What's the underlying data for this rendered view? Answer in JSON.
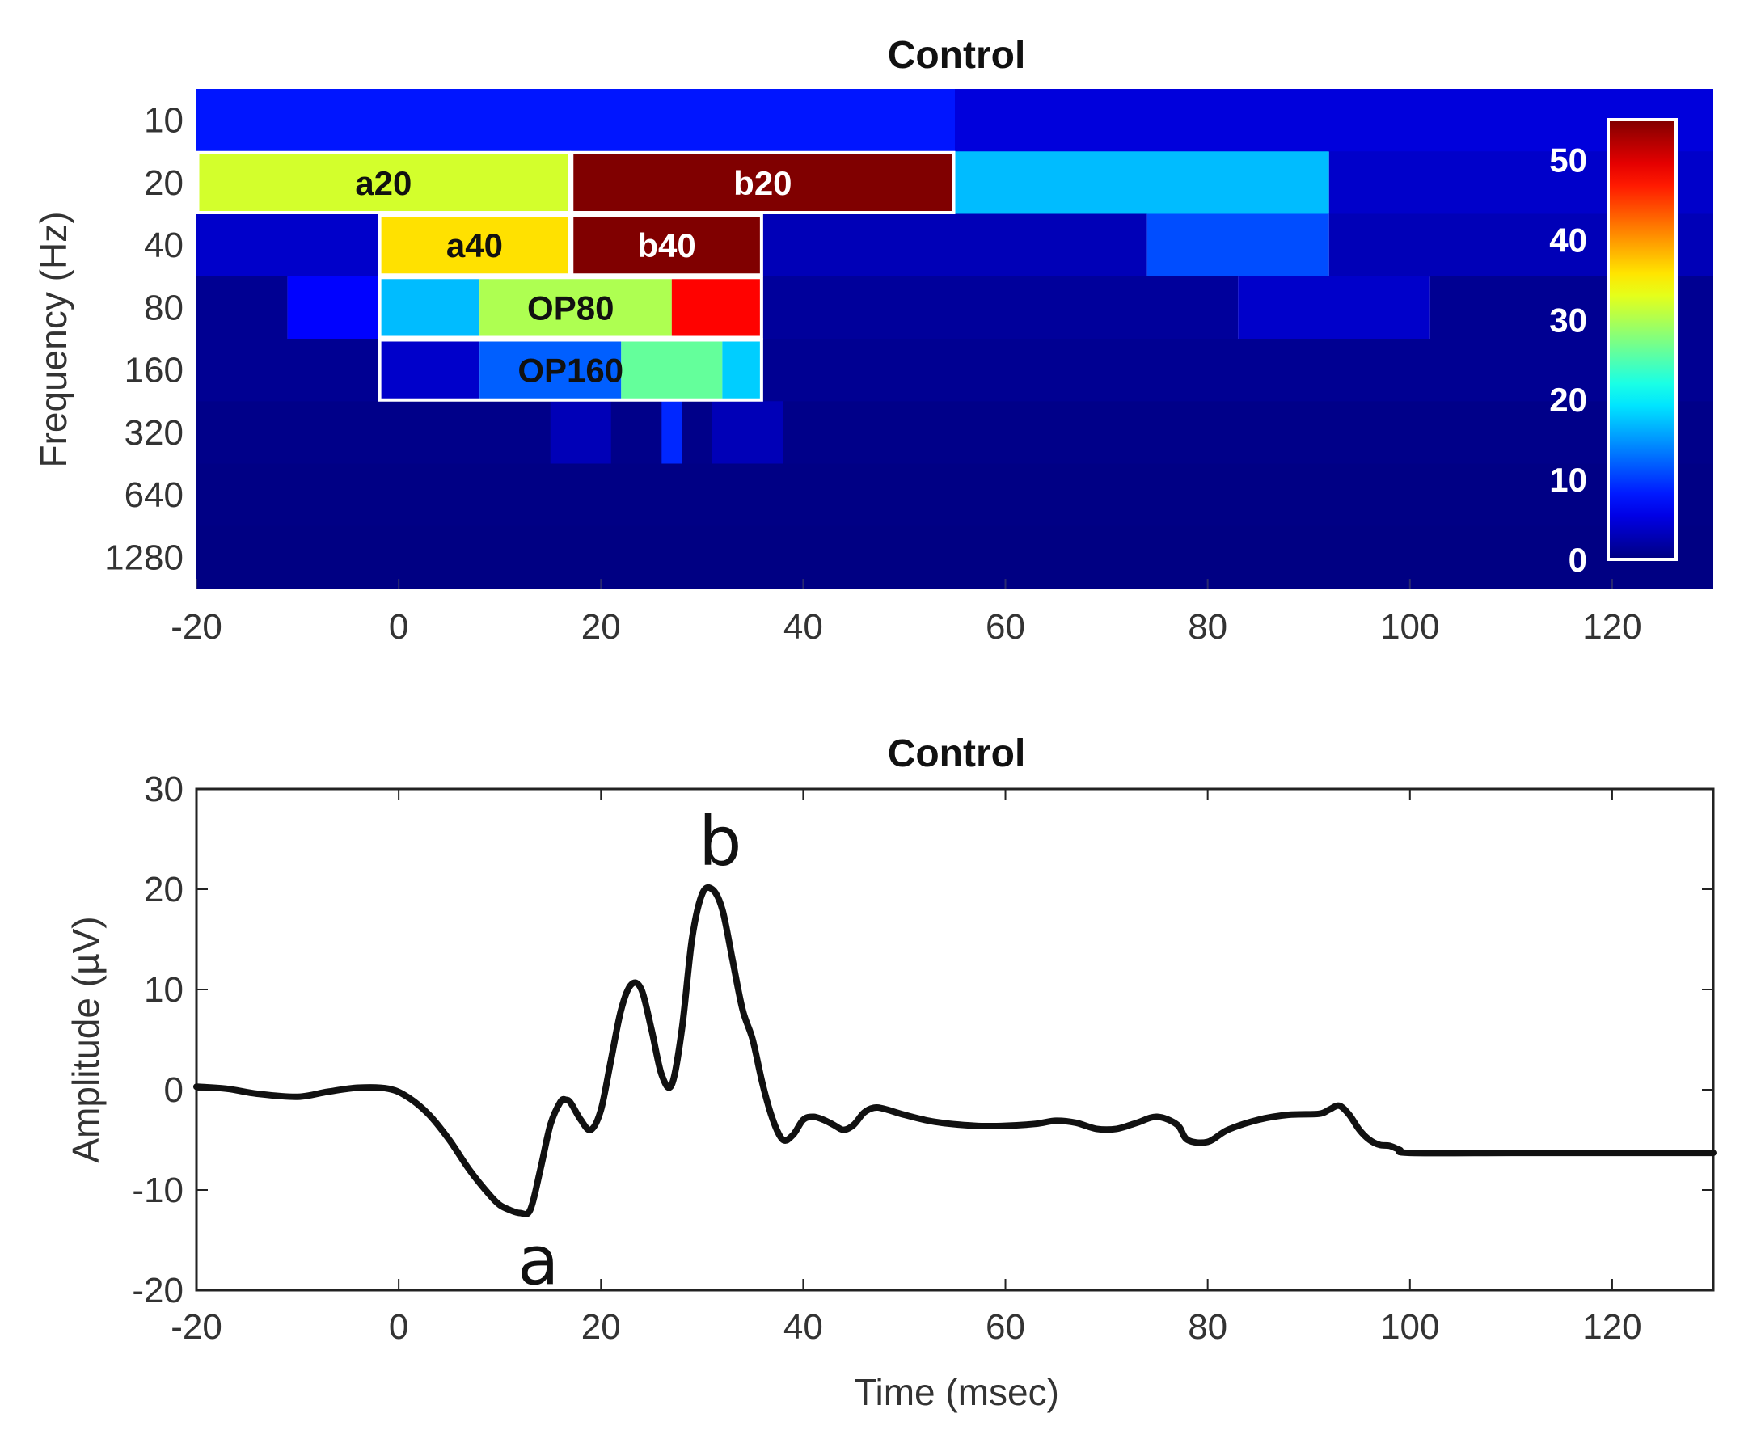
{
  "chart_data": [
    {
      "type": "heatmap",
      "title": "Control",
      "ylabel": "Frequency (Hz)",
      "x_ticks": [
        "-20",
        "0",
        "20",
        "40",
        "60",
        "80",
        "100",
        "120"
      ],
      "xlim": [
        -20,
        130
      ],
      "y_categories": [
        "10",
        "20",
        "40",
        "80",
        "160",
        "320",
        "640",
        "1280"
      ],
      "colorbar": {
        "range": [
          0,
          55
        ],
        "ticks": [
          "0",
          "10",
          "20",
          "30",
          "40",
          "50"
        ],
        "colormap": "jet"
      },
      "cells": [
        {
          "row": "10",
          "x0": -20,
          "x1": 55,
          "value": 8
        },
        {
          "row": "10",
          "x0": 55,
          "x1": 130,
          "value": 5
        },
        {
          "row": "20",
          "x0": -20,
          "x1": 17,
          "value": 32
        },
        {
          "row": "20",
          "x0": 17,
          "x1": 55,
          "value": 57
        },
        {
          "row": "20",
          "x0": 55,
          "x1": 92,
          "value": 17
        },
        {
          "row": "20",
          "x0": 92,
          "x1": 130,
          "value": 4
        },
        {
          "row": "40",
          "x0": -20,
          "x1": -2,
          "value": 4
        },
        {
          "row": "40",
          "x0": -2,
          "x1": 17,
          "value": 36
        },
        {
          "row": "40",
          "x0": 17,
          "x1": 36,
          "value": 57
        },
        {
          "row": "40",
          "x0": 36,
          "x1": 74,
          "value": 3
        },
        {
          "row": "40",
          "x0": 74,
          "x1": 92,
          "value": 11
        },
        {
          "row": "40",
          "x0": 92,
          "x1": 130,
          "value": 3
        },
        {
          "row": "80",
          "x0": -20,
          "x1": -11,
          "value": 1
        },
        {
          "row": "80",
          "x0": -11,
          "x1": -2,
          "value": 7
        },
        {
          "row": "80",
          "x0": -2,
          "x1": 8,
          "value": 17
        },
        {
          "row": "80",
          "x0": 8,
          "x1": 27,
          "value": 30
        },
        {
          "row": "80",
          "x0": 27,
          "x1": 36,
          "value": 48
        },
        {
          "row": "80",
          "x0": 36,
          "x1": 83,
          "value": 1.5
        },
        {
          "row": "80",
          "x0": 83,
          "x1": 102,
          "value": 4
        },
        {
          "row": "80",
          "x0": 102,
          "x1": 130,
          "value": 1
        },
        {
          "row": "160",
          "x0": -20,
          "x1": -2,
          "value": 1
        },
        {
          "row": "160",
          "x0": -2,
          "x1": 8,
          "value": 4
        },
        {
          "row": "160",
          "x0": 8,
          "x1": 22,
          "value": 12
        },
        {
          "row": "160",
          "x0": 22,
          "x1": 32,
          "value": 26
        },
        {
          "row": "160",
          "x0": 32,
          "x1": 36,
          "value": 18
        },
        {
          "row": "160",
          "x0": 36,
          "x1": 130,
          "value": 1
        },
        {
          "row": "320",
          "x0": -20,
          "x1": 130,
          "value": 0.5
        },
        {
          "row": "320",
          "x0": 15,
          "x1": 21,
          "value": 3
        },
        {
          "row": "320",
          "x0": 26,
          "x1": 28,
          "value": 9
        },
        {
          "row": "320",
          "x0": 31,
          "x1": 38,
          "value": 3
        },
        {
          "row": "640",
          "x0": -20,
          "x1": 130,
          "value": 0.3
        },
        {
          "row": "1280",
          "x0": -20,
          "x1": 130,
          "value": 0.2
        }
      ],
      "boxes": [
        {
          "label": "a20",
          "row": "20",
          "x0": -20,
          "x1": 17,
          "label_color": "#111111"
        },
        {
          "label": "b20",
          "row": "20",
          "x0": 17,
          "x1": 55,
          "label_color": "#ffffff"
        },
        {
          "label": "a40",
          "row": "40",
          "x0": -2,
          "x1": 17,
          "label_color": "#111111"
        },
        {
          "label": "b40",
          "row": "40",
          "x0": 17,
          "x1": 36,
          "label_color": "#ffffff"
        },
        {
          "label": "OP80",
          "row": "80",
          "x0": -2,
          "x1": 36,
          "label_color": "#111111"
        },
        {
          "label": "OP160",
          "row": "160",
          "x0": -2,
          "x1": 36,
          "label_color": "#111111"
        }
      ]
    },
    {
      "type": "line",
      "title": "Control",
      "xlabel": "Time (msec)",
      "ylabel": "Amplitude (µV)",
      "xlim": [
        -20,
        130
      ],
      "ylim": [
        -20,
        30
      ],
      "x_ticks": [
        "-20",
        "0",
        "20",
        "40",
        "60",
        "80",
        "100",
        "120"
      ],
      "y_ticks": [
        "-20",
        "-10",
        "0",
        "10",
        "20",
        "30"
      ],
      "series": [
        {
          "color": "#111111",
          "x": [
            -20,
            -17,
            -14,
            -10,
            -7,
            -4,
            -1,
            1,
            3,
            5,
            7,
            9,
            10,
            11,
            12,
            13,
            14,
            15,
            16,
            16.5,
            17,
            18,
            19,
            20,
            21,
            22,
            23,
            24,
            25,
            26,
            27,
            28,
            29,
            30,
            31,
            32,
            33,
            34,
            35,
            36,
            37,
            38,
            39,
            40,
            41,
            42,
            43,
            44,
            45,
            46,
            47,
            48,
            50,
            53,
            57,
            60,
            63,
            65,
            67,
            69,
            71,
            73,
            75,
            77,
            78,
            80,
            82,
            85,
            88,
            91,
            92,
            93,
            94,
            95,
            96,
            97,
            98,
            99,
            100,
            110,
            120,
            130
          ],
          "y": [
            0.3,
            0.1,
            -0.4,
            -0.7,
            -0.2,
            0.2,
            0.1,
            -0.8,
            -2.5,
            -5,
            -8,
            -10.5,
            -11.5,
            -12,
            -12.3,
            -12,
            -8,
            -3.5,
            -1.2,
            -1,
            -1.3,
            -3,
            -4,
            -2,
            3,
            8,
            10.5,
            10,
            6,
            1.5,
            0.5,
            6,
            15,
            19.5,
            20,
            18,
            13,
            8,
            5,
            0.5,
            -3,
            -5,
            -4.5,
            -3,
            -2.7,
            -3,
            -3.5,
            -4,
            -3.5,
            -2.3,
            -1.8,
            -1.9,
            -2.5,
            -3.2,
            -3.6,
            -3.6,
            -3.4,
            -3.1,
            -3.3,
            -3.9,
            -3.9,
            -3.3,
            -2.7,
            -3.5,
            -5,
            -5.2,
            -4,
            -3,
            -2.5,
            -2.4,
            -2,
            -1.6,
            -2.5,
            -4,
            -5,
            -5.5,
            -5.6,
            -6,
            -6.3,
            -6.3,
            -6.3,
            -6.3
          ]
        }
      ],
      "annotations": [
        {
          "text": "a",
          "x": 13,
          "y": -12.3
        },
        {
          "text": "b",
          "x": 31,
          "y": 20
        }
      ]
    }
  ]
}
